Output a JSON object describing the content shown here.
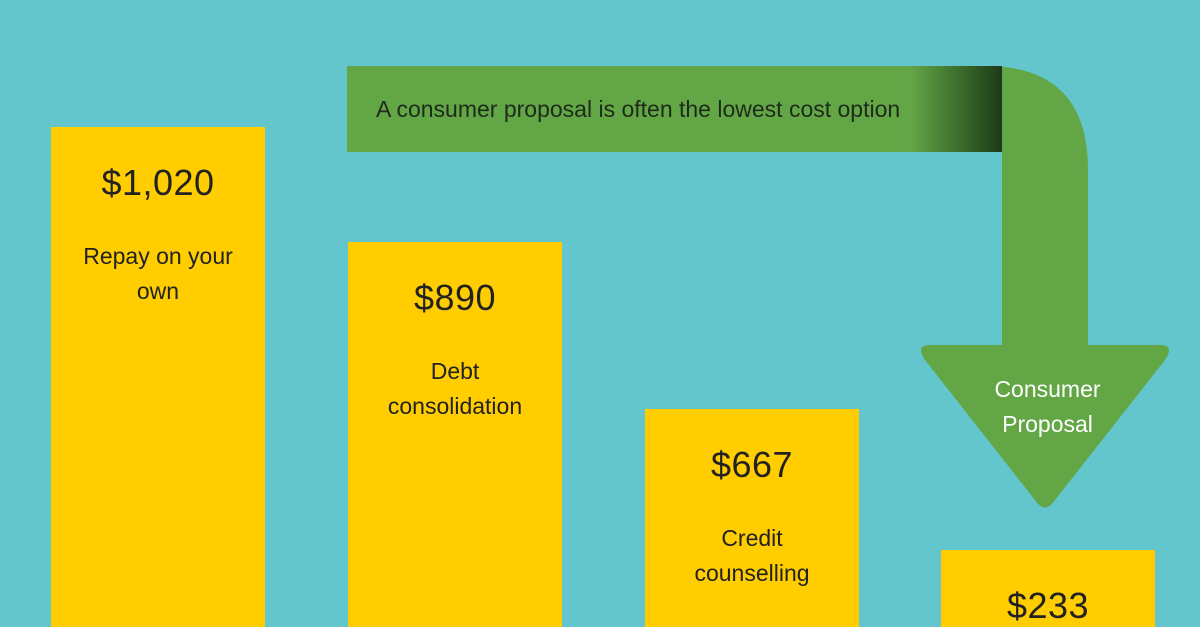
{
  "chart_data": {
    "type": "bar",
    "categories": [
      "Repay on your own",
      "Debt consolidation",
      "Credit counselling",
      "Consumer Proposal"
    ],
    "values": [
      1020,
      890,
      667,
      233
    ],
    "value_labels": [
      "$1,020",
      "$890",
      "$667",
      "$233"
    ],
    "labels": [
      "Repay on your own",
      "Debt consolidation",
      "Credit counselling",
      ""
    ],
    "title": "",
    "xlabel": "",
    "ylabel": "",
    "grid": false,
    "legend": "none",
    "annotation": "A consumer proposal is often the lowest cost option",
    "arrow_label": "Consumer Proposal"
  },
  "colors": {
    "background": "#63c6cd",
    "bar": "#ffcd00",
    "arrow": "#63a646",
    "label_text": "#222222",
    "arrow_text": "#ffffff"
  }
}
